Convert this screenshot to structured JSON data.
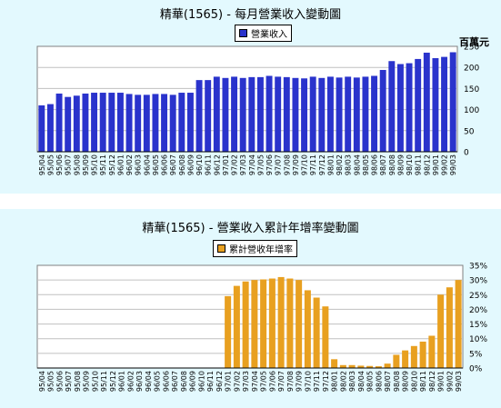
{
  "chart_data": [
    {
      "type": "bar",
      "title": "精華(1565) - 每月營業收入變動圖",
      "unit_label": "百萬元",
      "legend": "營業收入",
      "color": "#2a33cc",
      "ylim": [
        0,
        250
      ],
      "yticks": [
        "0",
        "50",
        "100",
        "150",
        "200",
        "250"
      ],
      "grid": "horizontal",
      "legend_position": "top-center",
      "categories": [
        "95/04",
        "95/05",
        "95/06",
        "95/07",
        "95/08",
        "95/09",
        "95/10",
        "95/11",
        "95/12",
        "96/01",
        "96/02",
        "96/03",
        "96/04",
        "96/05",
        "96/06",
        "96/07",
        "96/08",
        "96/09",
        "96/10",
        "96/11",
        "96/12",
        "97/01",
        "97/02",
        "97/03",
        "97/04",
        "97/05",
        "97/06",
        "97/07",
        "97/08",
        "97/09",
        "97/10",
        "97/11",
        "97/12",
        "98/01",
        "98/02",
        "98/03",
        "98/04",
        "98/05",
        "98/06",
        "98/07",
        "98/08",
        "98/09",
        "98/10",
        "98/11",
        "98/12",
        "99/01",
        "99/02",
        "99/03"
      ],
      "series": [
        {
          "values": [
            110,
            113,
            138,
            130,
            133,
            138,
            140,
            140,
            140,
            140,
            137,
            135,
            135,
            137,
            137,
            135,
            140,
            140,
            170,
            170,
            178,
            175,
            178,
            175,
            177,
            177,
            180,
            178,
            177,
            175,
            174,
            178,
            175,
            178,
            176,
            178,
            176,
            178,
            180,
            194,
            215,
            208,
            210,
            220,
            235,
            222,
            225,
            236
          ]
        }
      ]
    },
    {
      "type": "bar",
      "title": "精華(1565) -  營業收入累計年增率變動圖",
      "legend": "累計營收年增率",
      "color": "#e8a020",
      "ylim": [
        0,
        35
      ],
      "yticks": [
        "0%",
        "5%",
        "10%",
        "15%",
        "20%",
        "25%",
        "30%",
        "35%"
      ],
      "grid": "horizontal",
      "legend_position": "top-center",
      "categories": [
        "95/04",
        "95/05",
        "95/06",
        "95/07",
        "95/08",
        "95/09",
        "95/10",
        "95/11",
        "95/12",
        "96/01",
        "96/02",
        "96/03",
        "96/04",
        "96/05",
        "96/06",
        "96/07",
        "96/08",
        "96/09",
        "96/10",
        "96/11",
        "96/12",
        "97/01",
        "97/02",
        "97/03",
        "97/04",
        "97/05",
        "97/06",
        "97/07",
        "97/08",
        "97/09",
        "97/10",
        "97/11",
        "97/12",
        "98/01",
        "98/02",
        "98/03",
        "98/04",
        "98/05",
        "98/06",
        "98/07",
        "98/08",
        "98/09",
        "98/10",
        "98/11",
        "98/12",
        "99/01",
        "99/02",
        "99/03"
      ],
      "series": [
        {
          "values": [
            0,
            0,
            0,
            0,
            0,
            0,
            0,
            0,
            0,
            0,
            0,
            0,
            0,
            0,
            0,
            0,
            0,
            0,
            0,
            0,
            0,
            24.5,
            28,
            29.5,
            30,
            30.2,
            30.5,
            31,
            30.5,
            30,
            26.5,
            24,
            21,
            3,
            1,
            1,
            0.8,
            0.7,
            0.6,
            1.5,
            4.5,
            6,
            7.5,
            9,
            11,
            25,
            27.5,
            30
          ]
        }
      ]
    }
  ]
}
